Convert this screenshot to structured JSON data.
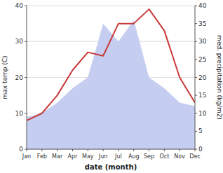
{
  "chart_data": {
    "type": "line",
    "categories": [
      "Jan",
      "Feb",
      "Mar",
      "Apr",
      "May",
      "Jun",
      "Jul",
      "Aug",
      "Sep",
      "Oct",
      "Nov",
      "Dec"
    ],
    "series": [
      {
        "type": "area",
        "color": "#c5cef0",
        "axis": "y2",
        "values": [
          9,
          10,
          13,
          17,
          20,
          35,
          30,
          36,
          20,
          17,
          13,
          12
        ]
      },
      {
        "type": "line",
        "color": "#c83a3a",
        "values": [
          8,
          10,
          15,
          22,
          27,
          26,
          35,
          35,
          39,
          33,
          20,
          13
        ]
      }
    ],
    "xlabel": "date (month)",
    "ylabel": "max temp (C)",
    "y2label": "med. precipitation (kg/m2)",
    "ylim": [
      0,
      40
    ],
    "yticks": [
      0,
      10,
      20,
      30,
      40
    ],
    "y2lim": [
      0,
      40
    ],
    "y2ticks": [
      0,
      5,
      10,
      15,
      20,
      25,
      30,
      35,
      40
    ],
    "grid": true
  }
}
